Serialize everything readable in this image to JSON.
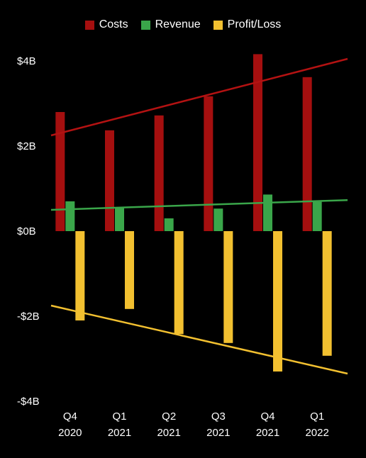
{
  "chart_data": {
    "type": "bar",
    "categories": [
      "Q4 2020",
      "Q1 2021",
      "Q2 2021",
      "Q3 2021",
      "Q4 2021",
      "Q1 2022"
    ],
    "category_lines": [
      [
        "Q4",
        "2020"
      ],
      [
        "Q1",
        "2021"
      ],
      [
        "Q2",
        "2021"
      ],
      [
        "Q3",
        "2021"
      ],
      [
        "Q4",
        "2021"
      ],
      [
        "Q1",
        "2022"
      ]
    ],
    "series": [
      {
        "name": "Costs",
        "color": "#a50f0f",
        "values": [
          2.8,
          2.37,
          2.72,
          3.17,
          4.16,
          3.62
        ]
      },
      {
        "name": "Revenue",
        "color": "#3aa64a",
        "values": [
          0.7,
          0.54,
          0.3,
          0.53,
          0.86,
          0.69
        ]
      },
      {
        "name": "Profit/Loss",
        "color": "#f2c030",
        "values": [
          -2.1,
          -1.83,
          -2.42,
          -2.63,
          -3.3,
          -2.93
        ]
      }
    ],
    "trendlines": [
      {
        "series": "Costs",
        "color": "#b31212",
        "start": 2.25,
        "end": 4.05
      },
      {
        "series": "Revenue",
        "color": "#3aa64a",
        "start": 0.5,
        "end": 0.73
      },
      {
        "series": "Profit/Loss",
        "color": "#f2c030",
        "start": -1.75,
        "end": -3.35
      }
    ],
    "yticks": [
      {
        "value": 4,
        "label": "$4B"
      },
      {
        "value": 2,
        "label": "$2B"
      },
      {
        "value": 0,
        "label": "$0B"
      },
      {
        "value": -2,
        "label": "-$2B"
      },
      {
        "value": -4,
        "label": "-$4B"
      }
    ],
    "ylim": [
      -4,
      4
    ],
    "legend_position": "top-center",
    "grid": false,
    "title": "",
    "xlabel": "",
    "ylabel": ""
  }
}
